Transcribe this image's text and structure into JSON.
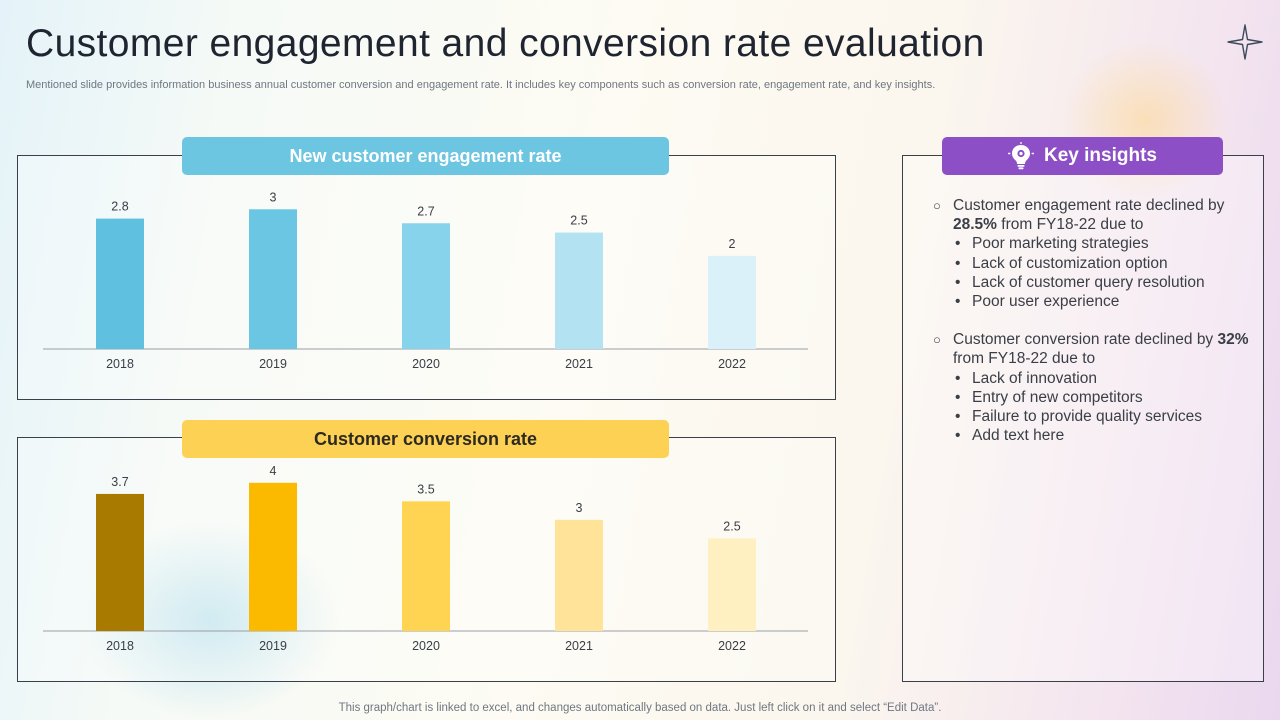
{
  "page": {
    "title": "Customer engagement and conversion rate evaluation",
    "subtitle": "Mentioned slide provides information business annual customer conversion and engagement rate. It includes key components such as conversion rate, engagement rate, and key insights.",
    "footer": "This graph/chart is linked to excel,  and changes automatically based on data. Just left click on it and select “Edit Data”."
  },
  "chart_data": [
    {
      "type": "bar",
      "title": "New customer engagement rate",
      "categories": [
        "2018",
        "2019",
        "2020",
        "2021",
        "2022"
      ],
      "values": [
        2.8,
        3,
        2.7,
        2.5,
        2
      ],
      "value_labels": [
        "2.8",
        "3",
        "2.7",
        "2.5",
        "2"
      ],
      "colors": [
        "#5fc0e0",
        "#6ac6e3",
        "#88d3ec",
        "#b3e3f3",
        "#daf1f9"
      ],
      "xlabel": "",
      "ylabel": "",
      "ylim": [
        0,
        3.5
      ],
      "grid": false,
      "legend": "none"
    },
    {
      "type": "bar",
      "title": "Customer conversion rate",
      "categories": [
        "2018",
        "2019",
        "2020",
        "2021",
        "2022"
      ],
      "values": [
        3.7,
        4,
        3.5,
        3,
        2.5
      ],
      "value_labels": [
        "3.7",
        "4",
        "3.5",
        "3",
        "2.5"
      ],
      "colors": [
        "#a87a00",
        "#fbb900",
        "#ffd453",
        "#ffe399",
        "#fff0c2"
      ],
      "xlabel": "",
      "ylabel": "",
      "ylim": [
        0,
        4.4
      ],
      "grid": false,
      "legend": "none"
    }
  ],
  "insights": {
    "header": "Key insights",
    "icon": "lightbulb-gear-icon",
    "items": [
      {
        "pre": "Customer engagement rate declined by ",
        "strong": "28.5%",
        "post": " from FY18-22 due to",
        "bullets": [
          "Poor marketing strategies",
          "Lack of customization option",
          "Lack of customer query resolution",
          "Poor user experience"
        ]
      },
      {
        "pre": "Customer conversion rate declined by ",
        "strong": "32%",
        "post": " from FY18-22 due to",
        "bullets": [
          "Lack of innovation",
          "Entry of new competitors",
          "Failure to provide quality services",
          "Add text here"
        ]
      }
    ]
  },
  "colors": {
    "engagement_header": "#6cc5e1",
    "conversion_header": "#fdd153",
    "insights_header": "#8d4fc6"
  }
}
